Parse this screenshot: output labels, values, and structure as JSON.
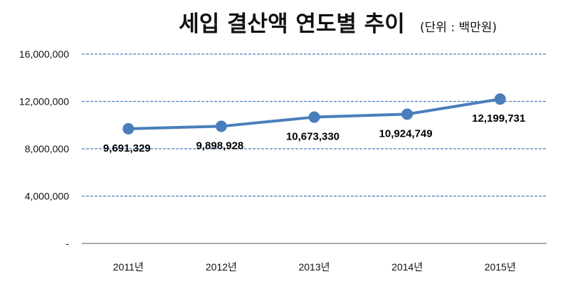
{
  "chart_data": {
    "type": "line",
    "title": "세입 결산액 연도별 추이",
    "unit_note": "(단위 : 백만원)",
    "categories": [
      "2011년",
      "2012년",
      "2013년",
      "2014년",
      "2015년"
    ],
    "series": [
      {
        "values": [
          9691329,
          9898928,
          10673330,
          10924749,
          12199731
        ],
        "data_labels": [
          "9,691,329",
          "9,898,928",
          "10,673,330",
          "10,924,749",
          "12,199,731"
        ],
        "color": "#4a7ebb"
      }
    ],
    "ylim": [
      0,
      16000000
    ],
    "yticks": [
      0,
      4000000,
      8000000,
      12000000,
      16000000
    ],
    "ytick_labels": [
      "-",
      "4,000,000",
      "8,000,000",
      "12,000,000",
      "16,000,000"
    ],
    "xlabel": "",
    "ylabel": "",
    "grid": true,
    "grid_color": "#4a7ebb",
    "legend": "none"
  }
}
